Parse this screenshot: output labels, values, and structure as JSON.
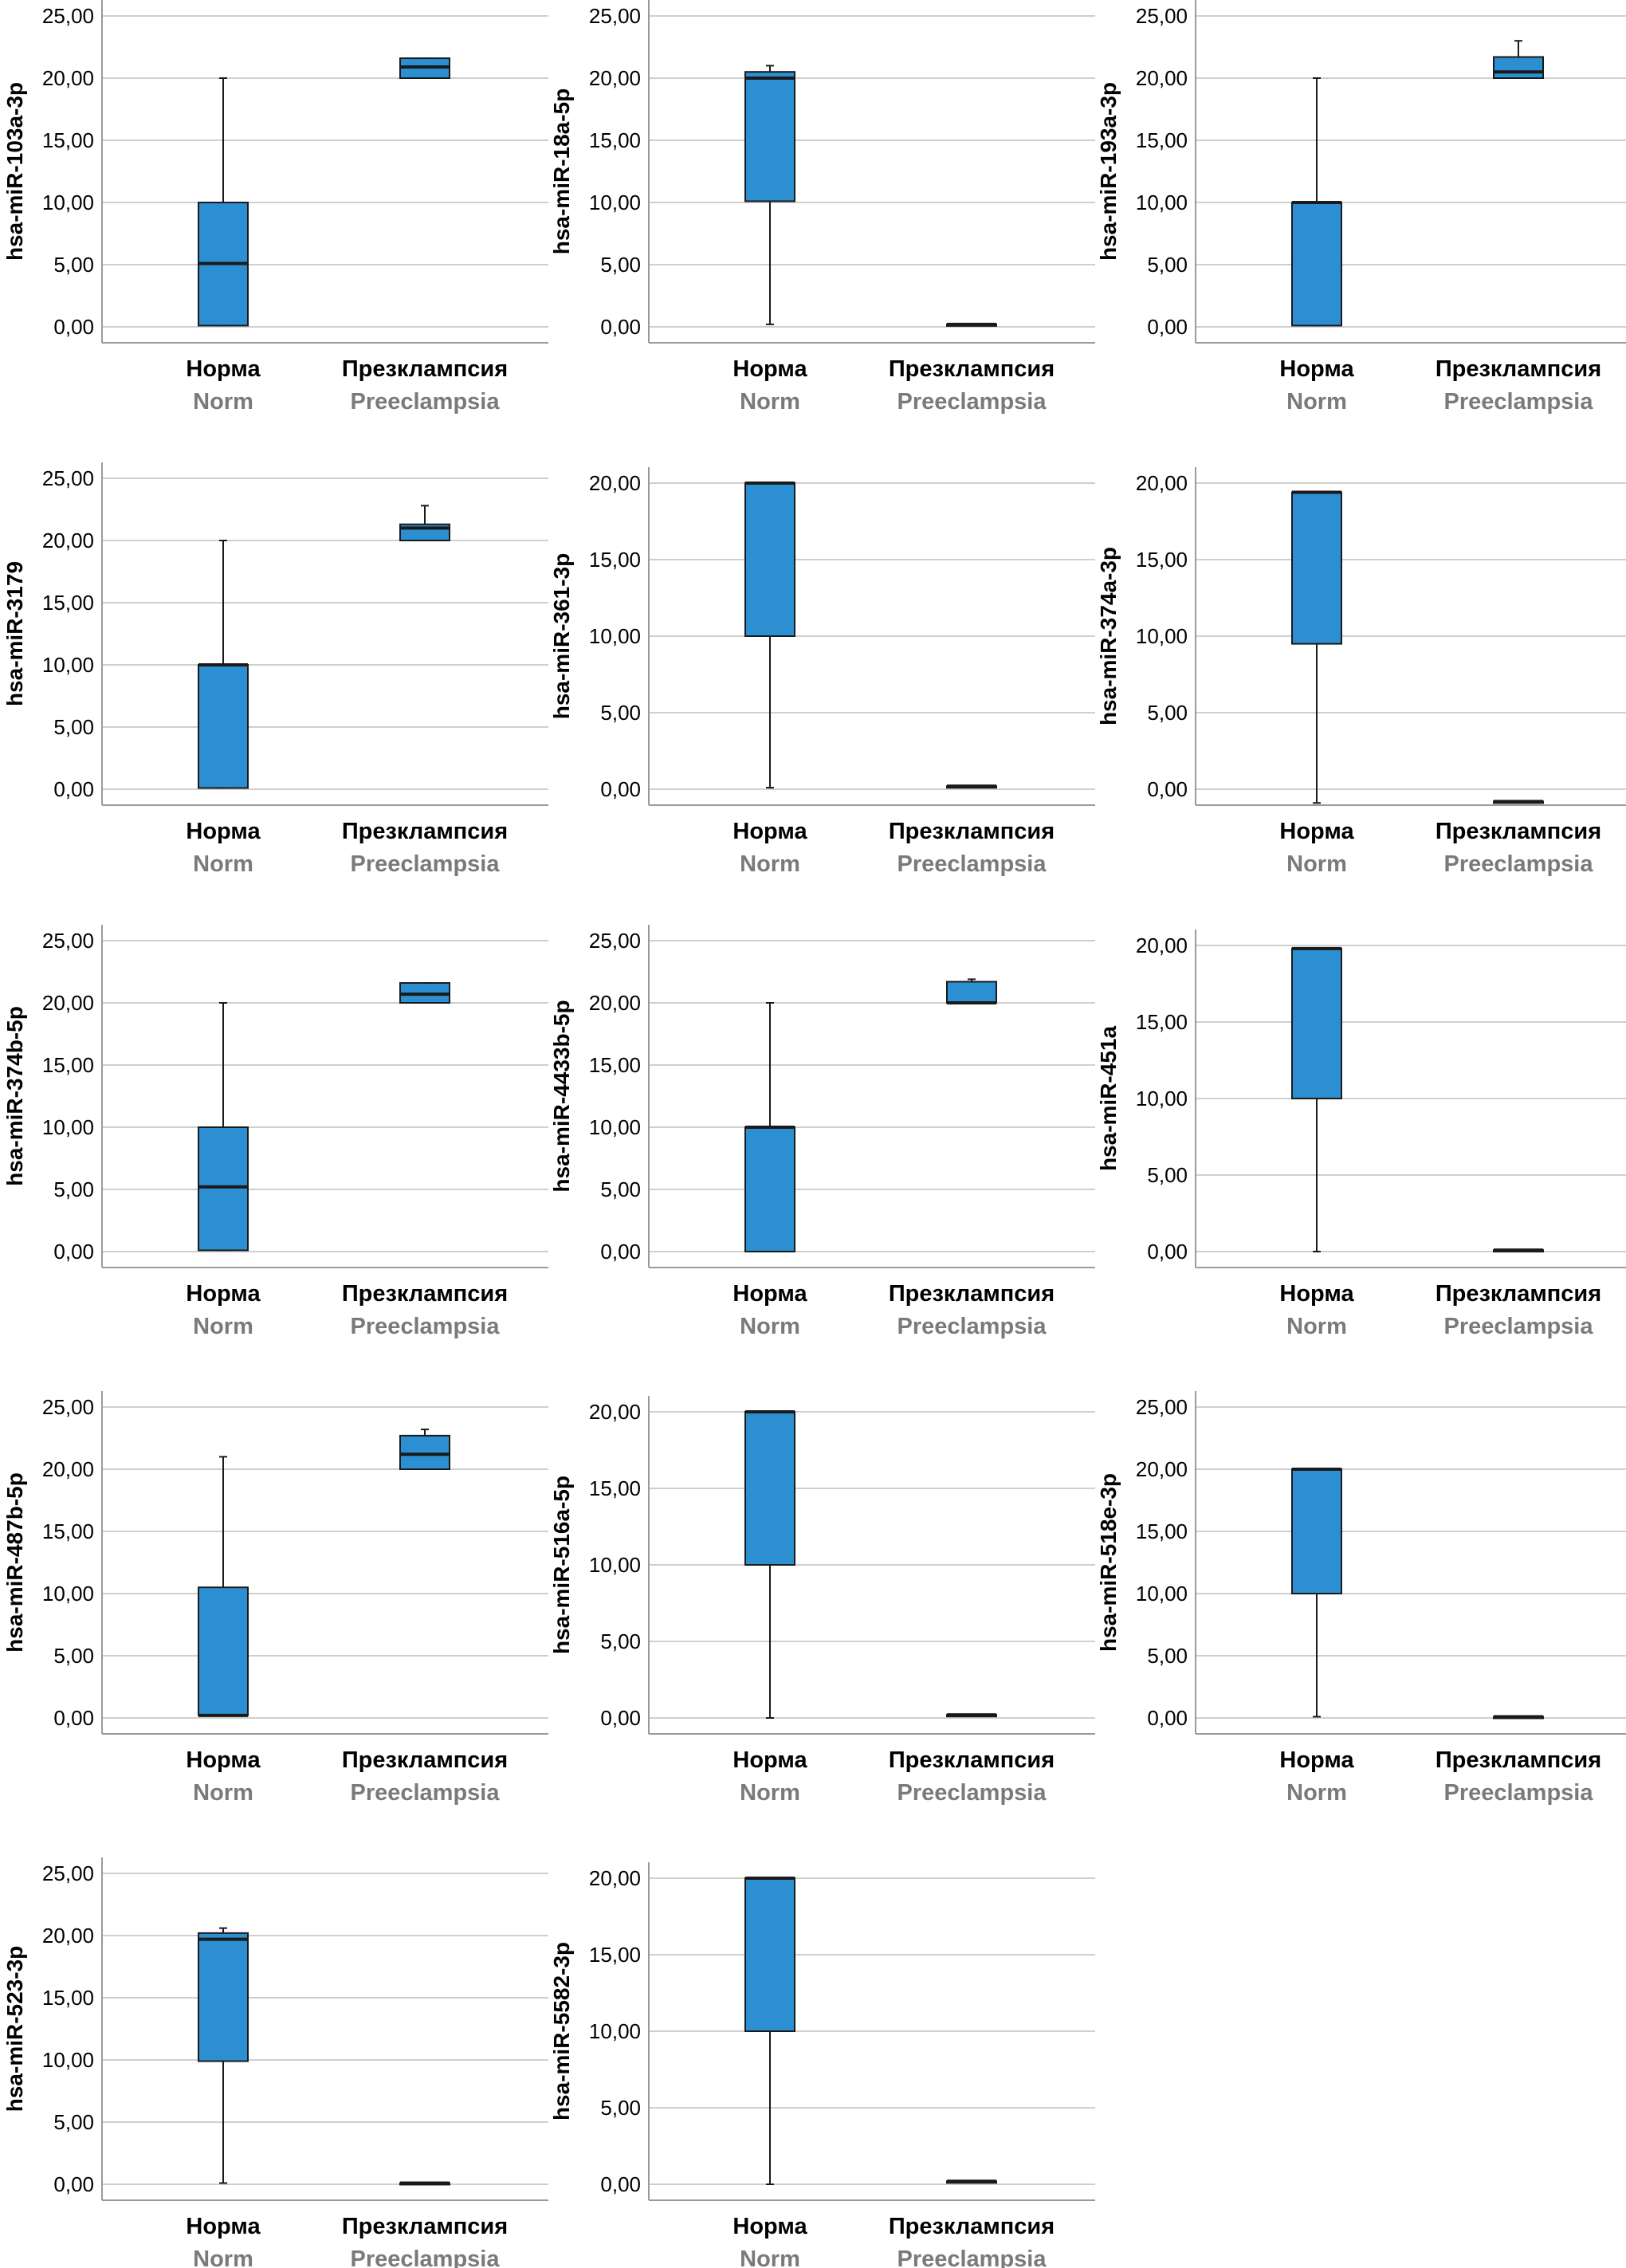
{
  "chart_data": [
    {
      "type": "box",
      "ylabel": "hsa-miR-103a-3p",
      "ylim": [
        0,
        25
      ],
      "yticks": [
        "0,00",
        "5,00",
        "10,00",
        "15,00",
        "20,00",
        "25,00"
      ],
      "categories": [
        {
          "ru": "Норма",
          "en": "Norm"
        },
        {
          "ru": "Презклампсия",
          "en": "Preeclampsia"
        }
      ],
      "boxes": [
        {
          "min": 0.1,
          "q1": 0.1,
          "median": 5.1,
          "q3": 10.0,
          "max": 20.0
        },
        {
          "min": 20.0,
          "q1": 20.0,
          "median": 20.9,
          "q3": 21.6,
          "max": 21.6
        }
      ]
    },
    {
      "type": "box",
      "ylabel": "hsa-miR-18a-5p",
      "ylim": [
        0,
        25
      ],
      "yticks": [
        "0,00",
        "5,00",
        "10,00",
        "15,00",
        "20,00",
        "25,00"
      ],
      "categories": [
        {
          "ru": "Норма",
          "en": "Norm"
        },
        {
          "ru": "Презклампсия",
          "en": "Preeclampsia"
        }
      ],
      "boxes": [
        {
          "min": 0.2,
          "q1": 10.1,
          "median": 20.0,
          "q3": 20.5,
          "max": 21.0
        },
        {
          "min": 0.2,
          "q1": 0.2,
          "median": 0.2,
          "q3": 0.2,
          "max": 0.2
        }
      ]
    },
    {
      "type": "box",
      "ylabel": "hsa-miR-193a-3p",
      "ylim": [
        0,
        25
      ],
      "yticks": [
        "0,00",
        "5,00",
        "10,00",
        "15,00",
        "20,00",
        "25,00"
      ],
      "categories": [
        {
          "ru": "Норма",
          "en": "Norm"
        },
        {
          "ru": "Презклампсия",
          "en": "Preeclampsia"
        }
      ],
      "boxes": [
        {
          "min": 0.1,
          "q1": 0.1,
          "median": 10.0,
          "q3": 10.0,
          "max": 20.0
        },
        {
          "min": 20.0,
          "q1": 20.0,
          "median": 20.5,
          "q3": 21.7,
          "max": 23.0
        }
      ]
    },
    {
      "type": "box",
      "ylabel": "hsa-miR-3179",
      "ylim": [
        0,
        25
      ],
      "yticks": [
        "0,00",
        "5,00",
        "10,00",
        "15,00",
        "20,00",
        "25,00"
      ],
      "categories": [
        {
          "ru": "Норма",
          "en": "Norm"
        },
        {
          "ru": "Презклампсия",
          "en": "Preeclampsia"
        }
      ],
      "boxes": [
        {
          "min": 0.1,
          "q1": 0.1,
          "median": 10.0,
          "q3": 10.0,
          "max": 20.0
        },
        {
          "min": 20.0,
          "q1": 20.0,
          "median": 21.0,
          "q3": 21.3,
          "max": 22.8
        }
      ]
    },
    {
      "type": "box",
      "ylabel": "hsa-miR-361-3p",
      "ylim": [
        0,
        20
      ],
      "yticks": [
        "0,00",
        "5,00",
        "10,00",
        "15,00",
        "20,00"
      ],
      "categories": [
        {
          "ru": "Норма",
          "en": "Norm"
        },
        {
          "ru": "Презклампсия",
          "en": "Preeclampsia"
        }
      ],
      "boxes": [
        {
          "min": 0.1,
          "q1": 10.0,
          "median": 20.0,
          "q3": 20.0,
          "max": 20.0
        },
        {
          "min": 0.2,
          "q1": 0.2,
          "median": 0.2,
          "q3": 0.2,
          "max": 0.2
        }
      ]
    },
    {
      "type": "box",
      "ylabel": "hsa-miR-374a-3p",
      "ylim": [
        0,
        20
      ],
      "yticks": [
        "0,00",
        "5,00",
        "10,00",
        "15,00",
        "20,00"
      ],
      "categories": [
        {
          "ru": "Норма",
          "en": "Norm"
        },
        {
          "ru": "Презклампсия",
          "en": "Preeclampsia"
        }
      ],
      "boxes": [
        {
          "min": -0.9,
          "q1": 9.5,
          "median": 19.4,
          "q3": 19.4,
          "max": 19.4
        },
        {
          "min": -0.8,
          "q1": -0.8,
          "median": -0.8,
          "q3": -0.8,
          "max": -0.8
        }
      ]
    },
    {
      "type": "box",
      "ylabel": "hsa-miR-374b-5p",
      "ylim": [
        0,
        25
      ],
      "yticks": [
        "0,00",
        "5,00",
        "10,00",
        "15,00",
        "20,00",
        "25,00"
      ],
      "categories": [
        {
          "ru": "Норма",
          "en": "Norm"
        },
        {
          "ru": "Презклампсия",
          "en": "Preeclampsia"
        }
      ],
      "boxes": [
        {
          "min": 0.1,
          "q1": 0.1,
          "median": 5.2,
          "q3": 10.0,
          "max": 20.0
        },
        {
          "min": 20.0,
          "q1": 20.0,
          "median": 20.7,
          "q3": 21.6,
          "max": 21.6
        }
      ]
    },
    {
      "type": "box",
      "ylabel": "hsa-miR-4433b-5p",
      "ylim": [
        0,
        25
      ],
      "yticks": [
        "0,00",
        "5,00",
        "10,00",
        "15,00",
        "20,00",
        "25,00"
      ],
      "categories": [
        {
          "ru": "Норма",
          "en": "Norm"
        },
        {
          "ru": "Презклампсия",
          "en": "Preeclampsia"
        }
      ],
      "boxes": [
        {
          "min": 0.0,
          "q1": 0.0,
          "median": 10.0,
          "q3": 10.0,
          "max": 20.0
        },
        {
          "min": 20.0,
          "q1": 20.0,
          "median": 20.0,
          "q3": 21.7,
          "max": 21.9
        }
      ]
    },
    {
      "type": "box",
      "ylabel": "hsa-miR-451a",
      "ylim": [
        0,
        20
      ],
      "yticks": [
        "0,00",
        "5,00",
        "10,00",
        "15,00",
        "20,00"
      ],
      "categories": [
        {
          "ru": "Норма",
          "en": "Norm"
        },
        {
          "ru": "Презклампсия",
          "en": "Preeclampsia"
        }
      ],
      "boxes": [
        {
          "min": 0.0,
          "q1": 10.0,
          "median": 19.8,
          "q3": 19.8,
          "max": 19.8
        },
        {
          "min": 0.1,
          "q1": 0.1,
          "median": 0.1,
          "q3": 0.1,
          "max": 0.1
        }
      ]
    },
    {
      "type": "box",
      "ylabel": "hsa-miR-487b-5p",
      "ylim": [
        0,
        25
      ],
      "yticks": [
        "0,00",
        "5,00",
        "10,00",
        "15,00",
        "20,00",
        "25,00"
      ],
      "categories": [
        {
          "ru": "Норма",
          "en": "Norm"
        },
        {
          "ru": "Презклампсия",
          "en": "Preeclampsia"
        }
      ],
      "boxes": [
        {
          "min": 0.2,
          "q1": 0.2,
          "median": 0.2,
          "q3": 10.5,
          "max": 21.0
        },
        {
          "min": 20.0,
          "q1": 20.0,
          "median": 21.2,
          "q3": 22.7,
          "max": 23.2
        }
      ]
    },
    {
      "type": "box",
      "ylabel": "hsa-miR-516a-5p",
      "ylim": [
        0,
        20
      ],
      "yticks": [
        "0,00",
        "5,00",
        "10,00",
        "15,00",
        "20,00"
      ],
      "categories": [
        {
          "ru": "Норма",
          "en": "Norm"
        },
        {
          "ru": "Презклампсия",
          "en": "Preeclampsia"
        }
      ],
      "boxes": [
        {
          "min": 0.0,
          "q1": 10.0,
          "median": 20.0,
          "q3": 20.0,
          "max": 20.0
        },
        {
          "min": 0.2,
          "q1": 0.2,
          "median": 0.2,
          "q3": 0.2,
          "max": 0.2
        }
      ]
    },
    {
      "type": "box",
      "ylabel": "hsa-miR-518e-3p",
      "ylim": [
        0,
        25
      ],
      "yticks": [
        "0,00",
        "5,00",
        "10,00",
        "15,00",
        "20,00",
        "25,00"
      ],
      "categories": [
        {
          "ru": "Норма",
          "en": "Norm"
        },
        {
          "ru": "Презклампсия",
          "en": "Preeclampsia"
        }
      ],
      "boxes": [
        {
          "min": 0.1,
          "q1": 10.0,
          "median": 20.0,
          "q3": 20.0,
          "max": 20.0
        },
        {
          "min": 0.1,
          "q1": 0.1,
          "median": 0.1,
          "q3": 0.1,
          "max": 0.1
        }
      ]
    },
    {
      "type": "box",
      "ylabel": "hsa-miR-523-3p",
      "ylim": [
        0,
        25
      ],
      "yticks": [
        "0,00",
        "5,00",
        "10,00",
        "15,00",
        "20,00",
        "25,00"
      ],
      "categories": [
        {
          "ru": "Норма",
          "en": "Norm"
        },
        {
          "ru": "Презклампсия",
          "en": "Preeclampsia"
        }
      ],
      "boxes": [
        {
          "min": 0.1,
          "q1": 9.9,
          "median": 19.7,
          "q3": 20.2,
          "max": 20.6
        },
        {
          "min": 0.1,
          "q1": 0.1,
          "median": 0.1,
          "q3": 0.1,
          "max": 0.1
        }
      ]
    },
    {
      "type": "box",
      "ylabel": "hsa-miR-5582-3p",
      "ylim": [
        0,
        20
      ],
      "yticks": [
        "0,00",
        "5,00",
        "10,00",
        "15,00",
        "20,00"
      ],
      "categories": [
        {
          "ru": "Норма",
          "en": "Norm"
        },
        {
          "ru": "Презклампсия",
          "en": "Preeclampsia"
        }
      ],
      "boxes": [
        {
          "min": 0.0,
          "q1": 10.0,
          "median": 20.0,
          "q3": 20.0,
          "max": 20.0
        },
        {
          "min": 0.2,
          "q1": 0.2,
          "median": 0.2,
          "q3": 0.2,
          "max": 0.2
        }
      ]
    }
  ]
}
